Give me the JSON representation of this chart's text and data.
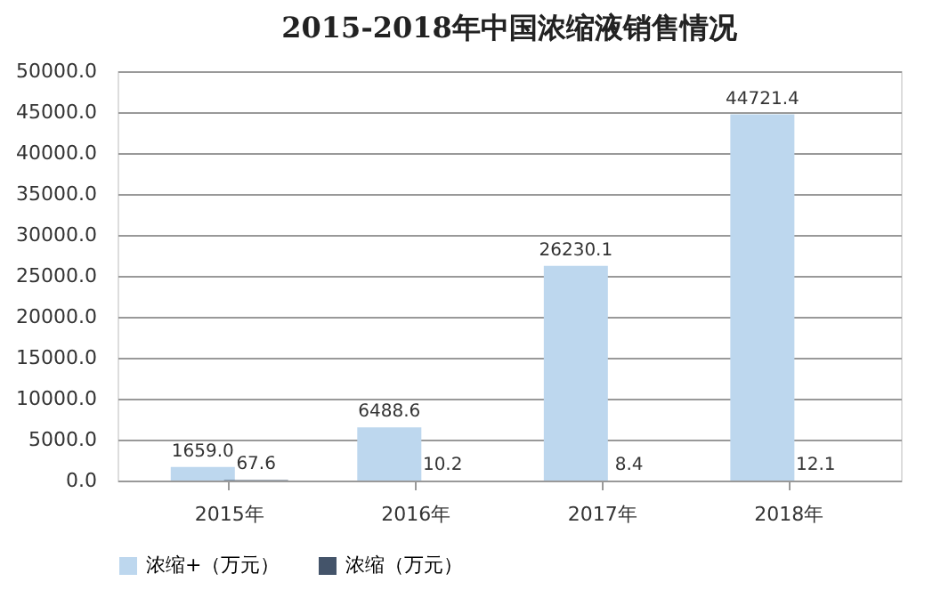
{
  "chart_data": {
    "type": "bar",
    "title": "2015-2018年中国浓缩液销售情况",
    "categories": [
      "2015年",
      "2016年",
      "2017年",
      "2018年"
    ],
    "series": [
      {
        "name": "浓缩+（万元）",
        "color": "#bdd7ee",
        "values": [
          1659.0,
          6488.6,
          26230.1,
          44721.4
        ],
        "value_labels": [
          "1659.0",
          "6488.6",
          "26230.1",
          "44721.4"
        ]
      },
      {
        "name": "浓缩（万元）",
        "color": "#44546a",
        "values": [
          67.6,
          10.2,
          8.4,
          12.1
        ],
        "value_labels": [
          "67.6",
          "10.2",
          "8.4",
          "12.1"
        ]
      }
    ],
    "ylim": [
      0,
      50000
    ],
    "yticks": [
      {
        "value": 0,
        "label": "0.0"
      },
      {
        "value": 5000,
        "label": "5000.0"
      },
      {
        "value": 10000,
        "label": "10000.0"
      },
      {
        "value": 15000,
        "label": "15000.0"
      },
      {
        "value": 20000,
        "label": "20000.0"
      },
      {
        "value": 25000,
        "label": "25000.0"
      },
      {
        "value": 30000,
        "label": "30000.0"
      },
      {
        "value": 35000,
        "label": "35000.0"
      },
      {
        "value": 40000,
        "label": "40000.0"
      },
      {
        "value": 45000,
        "label": "45000.0"
      },
      {
        "value": 50000,
        "label": "50000.0"
      }
    ],
    "grid": "y",
    "legend": "bottom"
  }
}
